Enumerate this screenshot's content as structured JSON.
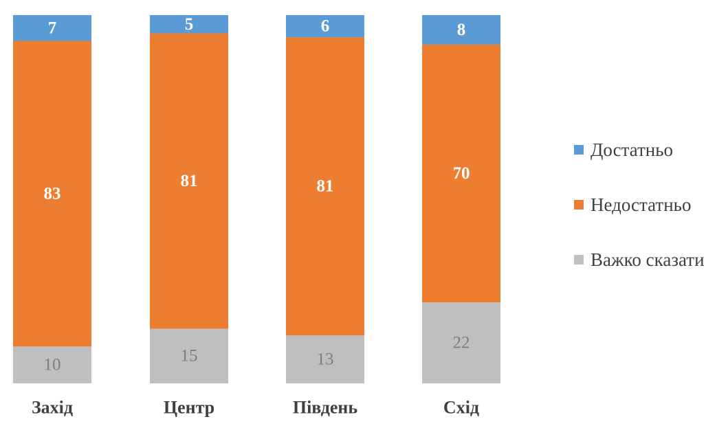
{
  "chart_data": {
    "type": "bar",
    "stacked": true,
    "percent": true,
    "categories": [
      "Захід",
      "Центр",
      "Південь",
      "Схід"
    ],
    "series": [
      {
        "name": "Важко сказати",
        "values": [
          10,
          15,
          13,
          22
        ],
        "color": "#bfbfbf",
        "label_color": "#7f7f7f"
      },
      {
        "name": "Недостатньо",
        "values": [
          83,
          81,
          81,
          70
        ],
        "color": "#ed7d31",
        "label_color": "#ffffff"
      },
      {
        "name": "Достатньо",
        "values": [
          7,
          5,
          6,
          8
        ],
        "color": "#5b9bd5",
        "label_color": "#ffffff"
      }
    ],
    "legend_order": [
      "Достатньо",
      "Недостатньо",
      "Важко сказати"
    ],
    "legend_position": "right",
    "ylim": [
      0,
      100
    ],
    "grid": false,
    "title": "",
    "xlabel": "",
    "ylabel": ""
  }
}
